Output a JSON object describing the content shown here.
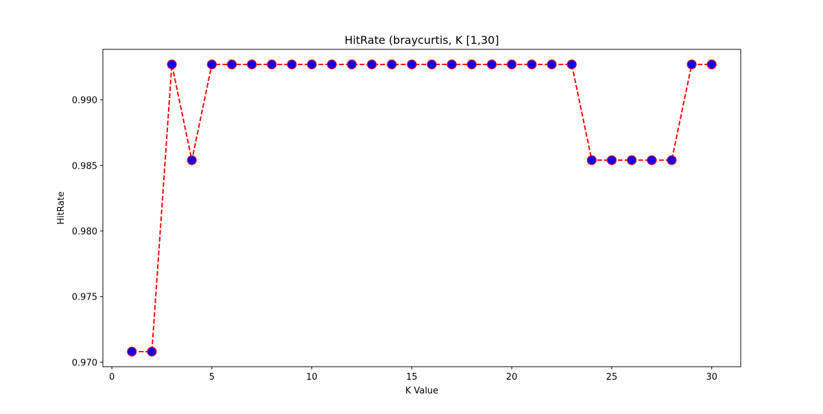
{
  "chart_data": {
    "type": "line",
    "title": "HitRate (braycurtis, K [1,30]",
    "xlabel": "K Value",
    "ylabel": "HitRate",
    "xlim": [
      -0.45,
      31.45
    ],
    "ylim": [
      0.96965,
      0.99385
    ],
    "xticks": [
      0,
      5,
      10,
      15,
      20,
      25,
      30
    ],
    "xtick_labels": [
      "0",
      "5",
      "10",
      "15",
      "20",
      "25",
      "30"
    ],
    "yticks": [
      0.97,
      0.975,
      0.98,
      0.985,
      0.99
    ],
    "ytick_labels": [
      "0.970",
      "0.975",
      "0.980",
      "0.985",
      "0.990"
    ],
    "grid": false,
    "series": [
      {
        "x": [
          1,
          2,
          3,
          4,
          5,
          6,
          7,
          8,
          9,
          10,
          11,
          12,
          13,
          14,
          15,
          16,
          17,
          18,
          19,
          20,
          21,
          22,
          23,
          24,
          25,
          26,
          27,
          28,
          29,
          30
        ],
        "values": [
          0.9708,
          0.9708,
          0.9927,
          0.9854,
          0.9927,
          0.9927,
          0.9927,
          0.9927,
          0.9927,
          0.9927,
          0.9927,
          0.9927,
          0.9927,
          0.9927,
          0.9927,
          0.9927,
          0.9927,
          0.9927,
          0.9927,
          0.9927,
          0.9927,
          0.9927,
          0.9927,
          0.9854,
          0.9854,
          0.9854,
          0.9854,
          0.9854,
          0.9927,
          0.9927
        ],
        "line_color": "#ff0000",
        "line_style": "dashed",
        "marker": "circle",
        "marker_face_color": "#0000ff",
        "marker_edge_color": "#ff0000"
      }
    ]
  }
}
